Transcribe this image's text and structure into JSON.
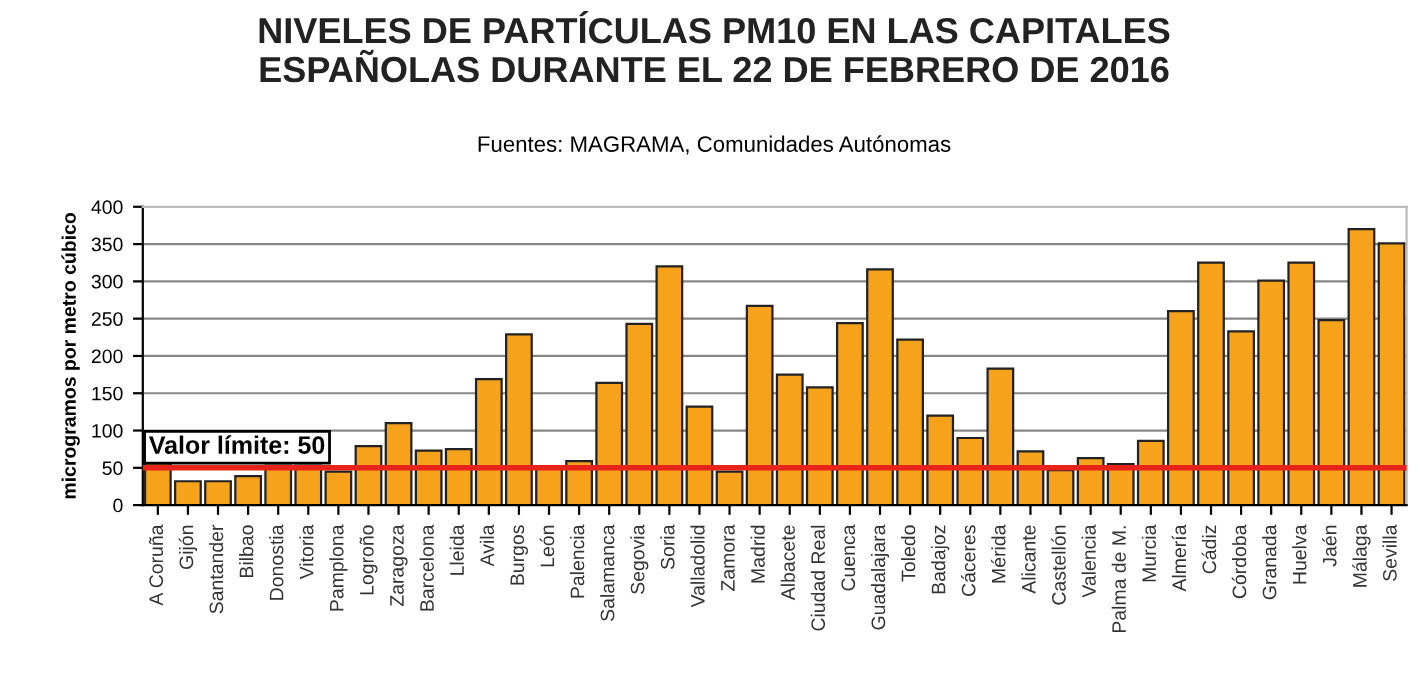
{
  "chart_data": {
    "type": "bar",
    "title": "NIVELES DE PARTÍCULAS PM10 EN LAS CAPITALES\nESPAÑOLAS DURANTE EL 22 DE FEBRERO DE 2016",
    "subtitle": "Fuentes: MAGRAMA, Comunidades Autónomas",
    "ylabel": "microgramos por metro cúbico",
    "categories": [
      "A Coruña",
      "Gijón",
      "Santander",
      "Bilbao",
      "Donostia",
      "Vitoria",
      "Pamplona",
      "Logroño",
      "Zaragoza",
      "Barcelona",
      "Lleida",
      "Avila",
      "Burgos",
      "León",
      "Palencia",
      "Salamanca",
      "Segovia",
      "Soria",
      "Valladolid",
      "Zamora",
      "Madrid",
      "Albacete",
      "Ciudad Real",
      "Cuenca",
      "Guadalajara",
      "Toledo",
      "Badajoz",
      "Cáceres",
      "Mérida",
      "Alicante",
      "Castellón",
      "Valencia",
      "Palma de M.",
      "Murcia",
      "Almería",
      "Cádiz",
      "Córdoba",
      "Granada",
      "Huelva",
      "Jaén",
      "Málaga",
      "Sevilla"
    ],
    "values": [
      56,
      32,
      32,
      39,
      53,
      53,
      45,
      79,
      110,
      73,
      75,
      169,
      229,
      49,
      59,
      164,
      243,
      320,
      132,
      45,
      267,
      175,
      158,
      244,
      316,
      222,
      120,
      90,
      183,
      72,
      47,
      63,
      55,
      86,
      260,
      325,
      233,
      301,
      325,
      248,
      370,
      351
    ],
    "color": "#f7a21b",
    "ylim": [
      0,
      400
    ],
    "yticks": [
      0,
      50,
      100,
      150,
      200,
      250,
      300,
      350,
      400
    ],
    "grid": "y",
    "ref_lines": [
      {
        "axis": "y",
        "value": 50,
        "label": "Valor límite: 50",
        "color": "#e8231a"
      }
    ]
  }
}
